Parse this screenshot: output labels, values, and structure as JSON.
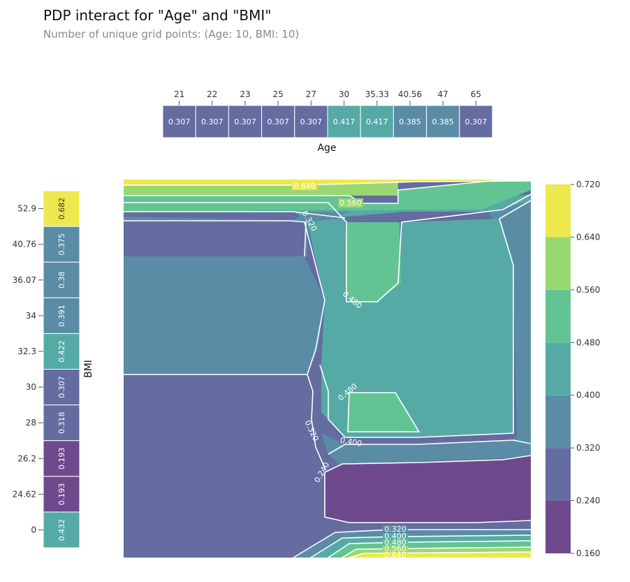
{
  "title": "PDP interact for \"Age\" and \"BMI\"",
  "subtitle": "Number of unique grid points: (Age: 10, BMI: 10)",
  "chart_data": [
    {
      "type": "heatmap",
      "name": "age-marginal",
      "xlabel": "Age",
      "categories": [
        "21",
        "22",
        "23",
        "25",
        "27",
        "30",
        "35.33",
        "40.56",
        "47",
        "65"
      ],
      "values": [
        0.307,
        0.307,
        0.307,
        0.307,
        0.307,
        0.417,
        0.417,
        0.385,
        0.385,
        0.307
      ]
    },
    {
      "type": "heatmap",
      "name": "bmi-marginal",
      "ylabel": "BMI",
      "categories": [
        "52.9",
        "40.76",
        "36.07",
        "34",
        "32.3",
        "30",
        "28",
        "26.2",
        "24.62",
        "0"
      ],
      "values": [
        0.682,
        0.375,
        0.38,
        0.391,
        0.422,
        0.307,
        0.318,
        0.193,
        0.193,
        0.432
      ]
    },
    {
      "type": "heatmap",
      "name": "interaction-contour",
      "contour_labels": [
        "0.640",
        "0.560",
        "0.320",
        "0.480",
        "0.480",
        "0.320",
        "0.400",
        "0.240",
        "0.320",
        "0.400",
        "0.480",
        "0.560",
        "0.640"
      ],
      "colorbar": {
        "ticks": [
          "0.720",
          "0.640",
          "0.560",
          "0.480",
          "0.400",
          "0.320",
          "0.240",
          "0.160"
        ],
        "range": [
          0.16,
          0.72
        ]
      }
    }
  ],
  "colors": {
    "0.16-0.24": "#6e4a8c",
    "0.24-0.32": "#646ca0",
    "0.32-0.40": "#5a8ca6",
    "0.40-0.48": "#56aaa6",
    "0.48-0.56": "#62c492",
    "0.56-0.64": "#98d872",
    "0.64-0.72": "#ece84e"
  }
}
